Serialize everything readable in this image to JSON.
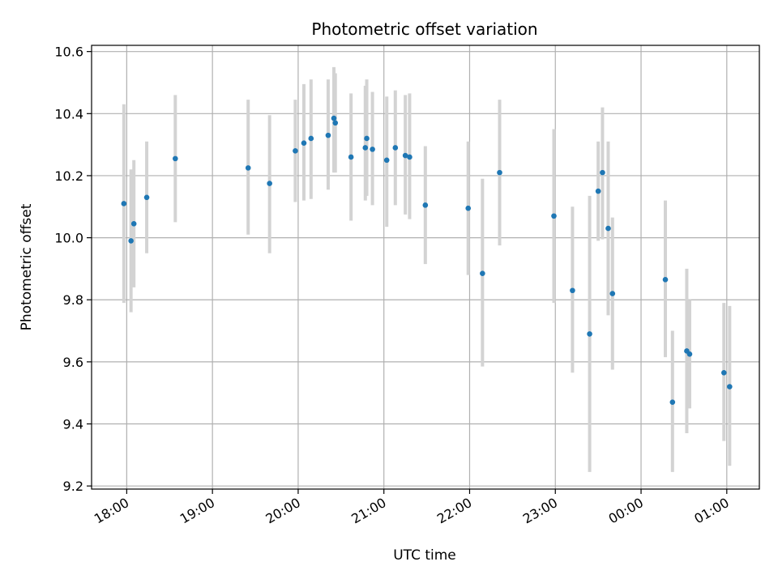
{
  "chart_data": {
    "type": "scatter",
    "title": "Photometric offset variation",
    "xlabel": "UTC time",
    "ylabel": "Photometric offset",
    "x_tick_labels": [
      "18:00",
      "19:00",
      "20:00",
      "21:00",
      "22:00",
      "23:00",
      "00:00",
      "01:00"
    ],
    "x_tick_hours": [
      18,
      19,
      20,
      21,
      22,
      23,
      24,
      25
    ],
    "y_ticks": [
      9.2,
      9.4,
      9.6,
      9.8,
      10.0,
      10.2,
      10.4,
      10.6
    ],
    "xlim_hours": [
      17.59,
      25.38
    ],
    "ylim": [
      9.19,
      10.62
    ],
    "grid": true,
    "marker_color": "#1f77b4",
    "errorbar_color": "#d3d3d3",
    "points": [
      {
        "t": "17:58",
        "y": 10.11,
        "lo": 9.79,
        "hi": 10.43
      },
      {
        "t": "18:03",
        "y": 9.99,
        "lo": 9.76,
        "hi": 10.22
      },
      {
        "t": "18:05",
        "y": 10.045,
        "lo": 9.84,
        "hi": 10.25
      },
      {
        "t": "18:14",
        "y": 10.13,
        "lo": 9.95,
        "hi": 10.31
      },
      {
        "t": "18:34",
        "y": 10.255,
        "lo": 10.05,
        "hi": 10.46
      },
      {
        "t": "19:25",
        "y": 10.225,
        "lo": 10.01,
        "hi": 10.445
      },
      {
        "t": "19:40",
        "y": 10.175,
        "lo": 9.95,
        "hi": 10.395
      },
      {
        "t": "19:58",
        "y": 10.28,
        "lo": 10.115,
        "hi": 10.445
      },
      {
        "t": "20:04",
        "y": 10.305,
        "lo": 10.12,
        "hi": 10.495
      },
      {
        "t": "20:09",
        "y": 10.32,
        "lo": 10.125,
        "hi": 10.51
      },
      {
        "t": "20:21",
        "y": 10.33,
        "lo": 10.155,
        "hi": 10.51
      },
      {
        "t": "20:25",
        "y": 10.385,
        "lo": 10.21,
        "hi": 10.55
      },
      {
        "t": "20:26",
        "y": 10.37,
        "lo": 10.21,
        "hi": 10.53
      },
      {
        "t": "20:37",
        "y": 10.26,
        "lo": 10.055,
        "hi": 10.465
      },
      {
        "t": "20:47",
        "y": 10.29,
        "lo": 10.12,
        "hi": 10.49
      },
      {
        "t": "20:48",
        "y": 10.32,
        "lo": 10.135,
        "hi": 10.51
      },
      {
        "t": "20:52",
        "y": 10.285,
        "lo": 10.105,
        "hi": 10.47
      },
      {
        "t": "21:02",
        "y": 10.25,
        "lo": 10.035,
        "hi": 10.455
      },
      {
        "t": "21:08",
        "y": 10.29,
        "lo": 10.105,
        "hi": 10.475
      },
      {
        "t": "21:15",
        "y": 10.265,
        "lo": 10.075,
        "hi": 10.46
      },
      {
        "t": "21:18",
        "y": 10.26,
        "lo": 10.06,
        "hi": 10.465
      },
      {
        "t": "21:29",
        "y": 10.105,
        "lo": 9.915,
        "hi": 10.295
      },
      {
        "t": "21:59",
        "y": 10.095,
        "lo": 9.88,
        "hi": 10.31
      },
      {
        "t": "22:09",
        "y": 9.885,
        "lo": 9.585,
        "hi": 10.19
      },
      {
        "t": "22:21",
        "y": 10.21,
        "lo": 9.975,
        "hi": 10.445
      },
      {
        "t": "22:59",
        "y": 10.07,
        "lo": 9.79,
        "hi": 10.35
      },
      {
        "t": "23:12",
        "y": 9.83,
        "lo": 9.565,
        "hi": 10.1
      },
      {
        "t": "23:24",
        "y": 9.69,
        "lo": 9.245,
        "hi": 10.135
      },
      {
        "t": "23:30",
        "y": 10.15,
        "lo": 9.99,
        "hi": 10.31
      },
      {
        "t": "23:33",
        "y": 10.21,
        "lo": 9.995,
        "hi": 10.42
      },
      {
        "t": "23:37",
        "y": 10.03,
        "lo": 9.75,
        "hi": 10.31
      },
      {
        "t": "23:40",
        "y": 9.82,
        "lo": 9.575,
        "hi": 10.065
      },
      {
        "t": "00:17",
        "y": 9.865,
        "lo": 9.615,
        "hi": 10.12
      },
      {
        "t": "00:22",
        "y": 9.47,
        "lo": 9.245,
        "hi": 9.7
      },
      {
        "t": "00:32",
        "y": 9.635,
        "lo": 9.37,
        "hi": 9.9
      },
      {
        "t": "00:34",
        "y": 9.625,
        "lo": 9.45,
        "hi": 9.8
      },
      {
        "t": "00:58",
        "y": 9.565,
        "lo": 9.345,
        "hi": 9.79
      },
      {
        "t": "01:02",
        "y": 9.52,
        "lo": 9.265,
        "hi": 9.78
      }
    ]
  }
}
